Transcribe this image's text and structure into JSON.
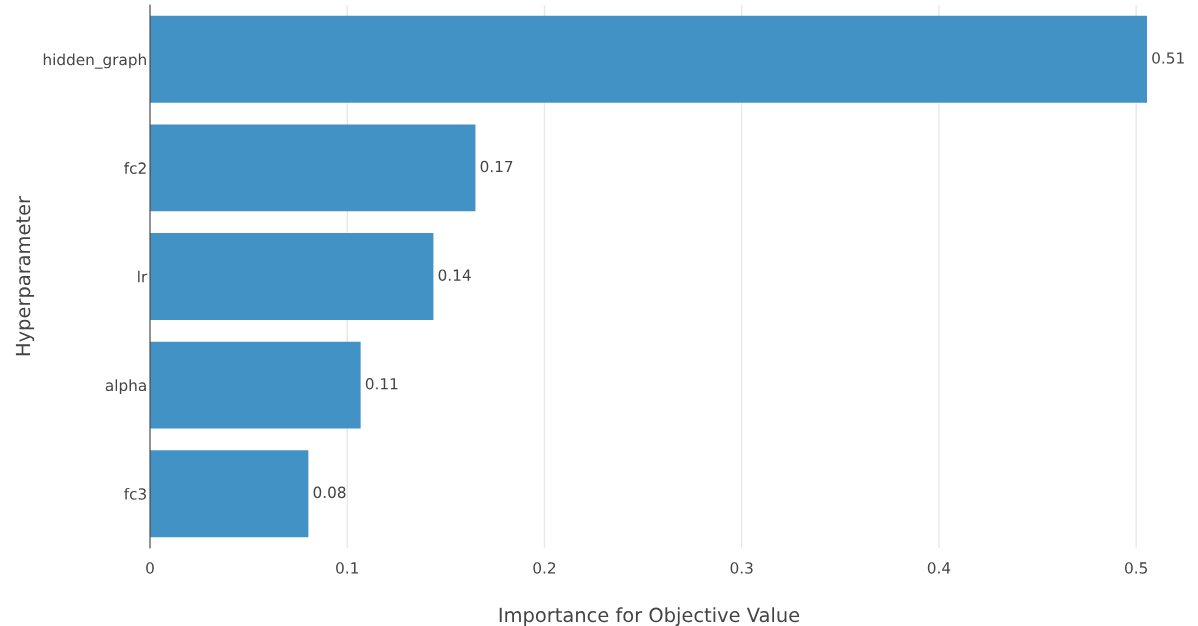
{
  "chart_data": {
    "type": "bar",
    "orientation": "horizontal",
    "xlabel": "Importance for Objective Value",
    "ylabel": "Hyperparameter",
    "categories": [
      "hidden_graph",
      "fc2",
      "lr",
      "alpha",
      "fc3"
    ],
    "values": [
      0.5055,
      0.165,
      0.1437,
      0.1068,
      0.0803
    ],
    "value_labels": [
      "0.51",
      "0.17",
      "0.14",
      "0.11",
      "0.08"
    ],
    "color": "#4292c6",
    "xlim": [
      0,
      0.506
    ],
    "xticks": [
      0,
      0.1,
      0.2,
      0.3,
      0.4,
      0.5
    ],
    "grid": "x"
  }
}
